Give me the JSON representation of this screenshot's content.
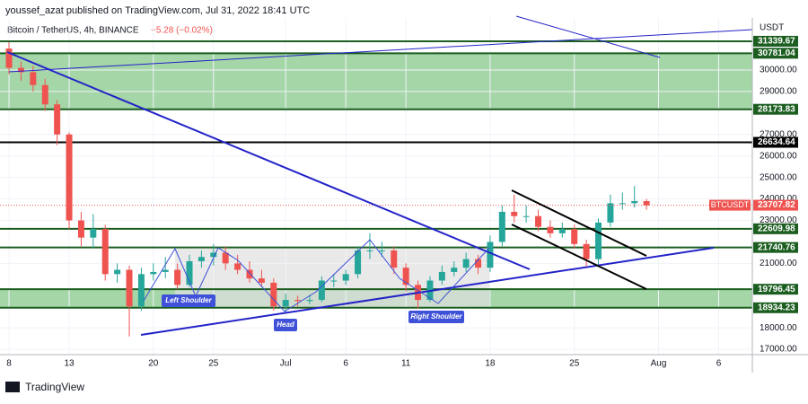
{
  "header": {
    "publisher": "youssef_azat published on TradingView.com, Jul 31, 2022 18:41 UTC",
    "symbol": "Bitcoin / TetherUS, 4h, BINANCE",
    "change": "−5.28 (−0.02%)"
  },
  "footer": {
    "brand": "TradingView"
  },
  "chart_data": {
    "type": "candlestick",
    "currency": "USDT",
    "x": [
      0,
      1,
      2,
      3,
      4,
      5,
      6,
      7,
      8,
      9,
      10,
      11,
      12,
      13,
      14,
      15,
      16,
      17,
      18,
      19,
      20,
      21,
      22,
      23,
      24,
      25,
      26,
      27,
      28,
      29,
      30,
      31,
      32,
      33,
      34,
      35,
      36,
      37,
      38,
      39,
      40,
      41,
      42,
      43,
      44,
      45,
      46,
      47,
      48,
      49,
      50,
      51,
      52,
      53
    ],
    "open": [
      31000,
      30100,
      29900,
      29300,
      28400,
      27000,
      23000,
      22200,
      22600,
      20500,
      20700,
      19000,
      20500,
      20600,
      20700,
      20000,
      21100,
      21300,
      21500,
      21000,
      20700,
      20300,
      20100,
      19000,
      19300,
      19250,
      19300,
      20200,
      20200,
      20500,
      21600,
      21600,
      21600,
      20800,
      20000,
      19300,
      20200,
      20600,
      20800,
      21200,
      20800,
      22000,
      23400,
      23200,
      23200,
      22700,
      22400,
      22600,
      21900,
      21200,
      22900,
      23800,
      23800,
      23900
    ],
    "high": [
      31300,
      30400,
      30200,
      29600,
      28600,
      27100,
      23400,
      23300,
      22800,
      21000,
      20900,
      20800,
      21000,
      21300,
      21000,
      21400,
      21600,
      21900,
      21800,
      21400,
      21100,
      20700,
      20300,
      19600,
      19500,
      19550,
      20400,
      20500,
      20700,
      21800,
      22400,
      22000,
      21800,
      21000,
      20200,
      20400,
      20900,
      21100,
      21500,
      21400,
      22300,
      23700,
      24200,
      23700,
      23500,
      23000,
      22900,
      22800,
      22100,
      23100,
      24200,
      24300,
      24600,
      24000
    ],
    "low": [
      29800,
      29500,
      29000,
      28100,
      26500,
      22600,
      21800,
      21700,
      20200,
      20100,
      17600,
      18800,
      20200,
      20300,
      19800,
      19900,
      20800,
      20900,
      20700,
      20500,
      20100,
      19900,
      18800,
      18700,
      19000,
      19100,
      19200,
      19900,
      20000,
      20300,
      21200,
      21300,
      20500,
      19700,
      18900,
      19200,
      20000,
      20400,
      20600,
      20500,
      20600,
      21800,
      22900,
      22900,
      22500,
      22200,
      22200,
      21700,
      20800,
      20900,
      22700,
      23500,
      23600,
      23500
    ],
    "close": [
      30100,
      29900,
      29300,
      28400,
      27000,
      23000,
      22200,
      22600,
      20500,
      20700,
      19000,
      20500,
      20600,
      20700,
      20000,
      21100,
      21300,
      21500,
      21000,
      20700,
      20300,
      20100,
      19000,
      19300,
      19250,
      19300,
      20200,
      20200,
      20500,
      21600,
      21600,
      21600,
      20800,
      20000,
      19300,
      20200,
      20600,
      20800,
      21200,
      20800,
      22000,
      23400,
      23200,
      23200,
      22700,
      22400,
      22600,
      21900,
      21200,
      22900,
      23800,
      23800,
      23900,
      23700
    ],
    "up_color": "#26a69a",
    "down_color": "#ef5350",
    "xlim": [
      -0.75,
      61.8
    ],
    "ylim": [
      16753,
      32424
    ],
    "xticks": [
      {
        "value": 0,
        "label": "8"
      },
      {
        "value": 5,
        "label": "13"
      },
      {
        "value": 12,
        "label": "20"
      },
      {
        "value": 17,
        "label": "25"
      },
      {
        "value": 23,
        "label": "Jul"
      },
      {
        "value": 28,
        "label": "6"
      },
      {
        "value": 33,
        "label": "11"
      },
      {
        "value": 40,
        "label": "18"
      },
      {
        "value": 47,
        "label": "25"
      },
      {
        "value": 54,
        "label": "Aug"
      },
      {
        "value": 59,
        "label": "6"
      }
    ],
    "yticks": [
      {
        "value": 17000,
        "label": "17000.00"
      },
      {
        "value": 18000,
        "label": "18000.00"
      },
      {
        "value": 21000,
        "label": "21000.00"
      },
      {
        "value": 23000,
        "label": "23000.00"
      },
      {
        "value": 24000,
        "label": "24000.00"
      },
      {
        "value": 25000,
        "label": "25000.00"
      },
      {
        "value": 26000,
        "label": "26000.00"
      },
      {
        "value": 27000,
        "label": "27000.00"
      },
      {
        "value": 29000,
        "label": "29000.00"
      },
      {
        "value": 30000,
        "label": "30000.00"
      }
    ],
    "levels": [
      {
        "value": 31339.67,
        "color": "#1b5e20"
      },
      {
        "value": 30781.04,
        "color": "#1b5e20"
      },
      {
        "value": 28173.83,
        "color": "#1b5e20"
      },
      {
        "value": 26634.64,
        "color": "#000000"
      },
      {
        "value": 22609.98,
        "color": "#1b5e20"
      },
      {
        "value": 21740.76,
        "color": "#1b5e20"
      },
      {
        "value": 19796.45,
        "color": "#1b5e20"
      },
      {
        "value": 18934.23,
        "color": "#1b5e20"
      }
    ],
    "current": {
      "name": "BTCUSDT",
      "value": 23707.82,
      "color": "#ef5350"
    },
    "annotations": [
      "Left Shoulder",
      "Head",
      "Right Shoulder"
    ]
  }
}
